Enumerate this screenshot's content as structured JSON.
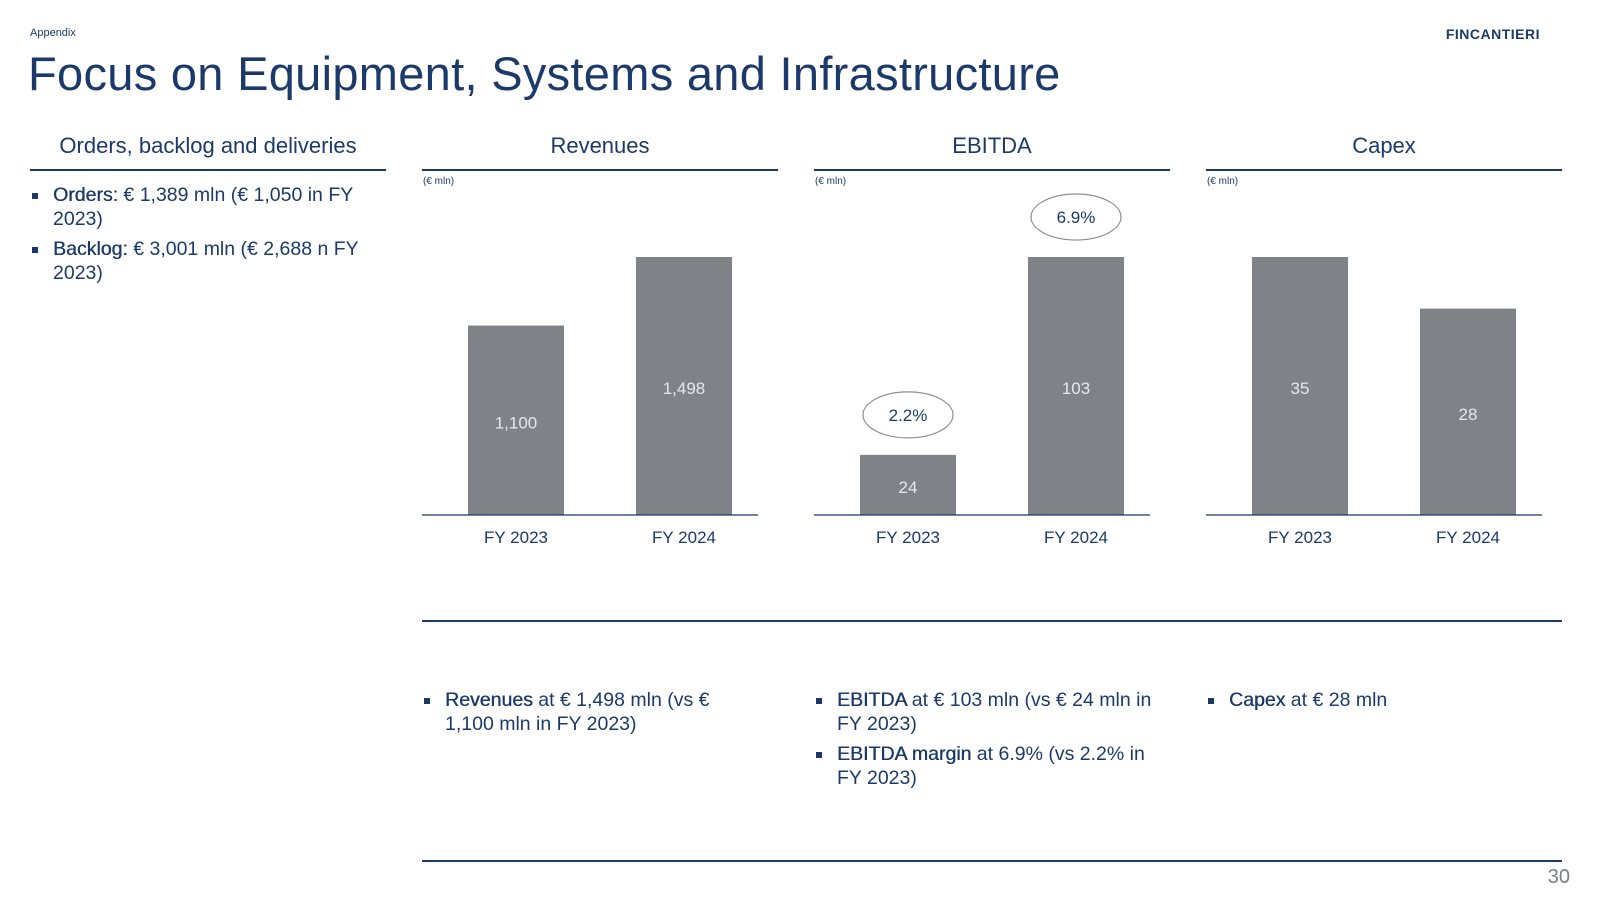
{
  "header": {
    "section_label": "Appendix",
    "logo_text": "FINCANTIERI",
    "title": "Focus on Equipment, Systems and Infrastructure"
  },
  "left_panel": {
    "heading": "Orders, backlog and deliveries",
    "items": [
      {
        "label": "Orders:",
        "text": " € 1,389 mln (€ 1,050 in FY 2023)"
      },
      {
        "label": "Backlog:",
        "text": " € 3,001 mln (€ 2,688 n FY 2023)"
      }
    ]
  },
  "colors": {
    "bar": "#7f8388",
    "primary": "#1b3a6b",
    "bar_label": "#e6e8ea",
    "ellipse": "#8a8e93"
  },
  "chart_data": [
    {
      "type": "bar",
      "title": "Revenues",
      "unit": "(€ mln)",
      "categories": [
        "FY 2023",
        "FY 2024"
      ],
      "values": [
        1100,
        1498
      ],
      "labels": [
        "1,100",
        "1,498"
      ]
    },
    {
      "type": "bar",
      "title": "EBITDA",
      "unit": "(€ mln)",
      "categories": [
        "FY 2023",
        "FY 2024"
      ],
      "values": [
        24,
        103
      ],
      "labels": [
        "24",
        "103"
      ],
      "annotations": [
        "2.2%",
        "6.9%"
      ]
    },
    {
      "type": "bar",
      "title": "Capex",
      "unit": "(€ mln)",
      "categories": [
        "FY 2023",
        "FY 2024"
      ],
      "values": [
        35,
        28
      ],
      "labels": [
        "35",
        "28"
      ]
    }
  ],
  "commentary": {
    "revenues": [
      {
        "label": "Revenues",
        "text": " at € 1,498 mln (vs € 1,100 mln in FY 2023)"
      }
    ],
    "ebitda": [
      {
        "label": "EBITDA",
        "text": " at € 103 mln (vs € 24 mln in FY 2023)"
      },
      {
        "label": "EBITDA margin",
        "text": " at 6.9% (vs 2.2% in FY 2023)"
      }
    ],
    "capex": [
      {
        "label": "Capex",
        "text": " at € 28 mln"
      }
    ]
  },
  "page_number": "30"
}
